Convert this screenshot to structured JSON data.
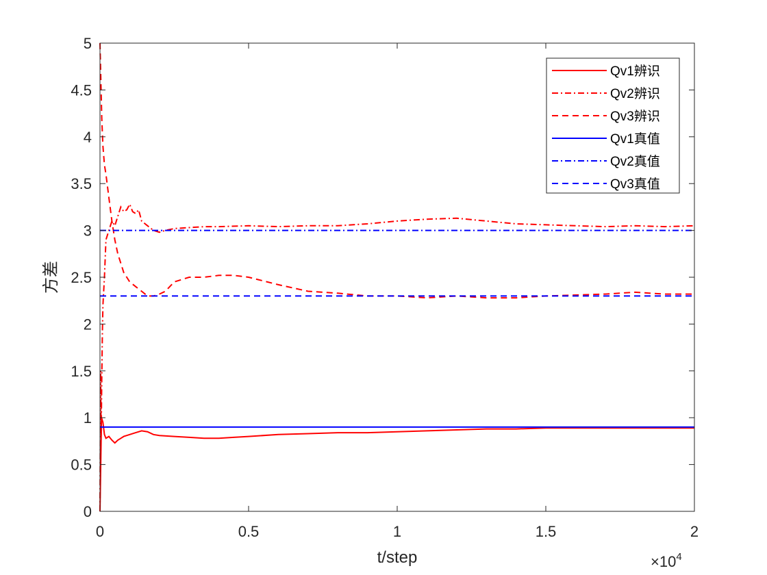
{
  "chart_data": {
    "type": "line",
    "xlabel": "t/step",
    "ylabel": "方差",
    "xlim": [
      0,
      20000
    ],
    "ylim": [
      0,
      5
    ],
    "x_exponent_label": "×10",
    "x_exponent_power": "4",
    "xticks": [
      {
        "value": 0,
        "label": "0"
      },
      {
        "value": 5000,
        "label": "0.5"
      },
      {
        "value": 10000,
        "label": "1"
      },
      {
        "value": 15000,
        "label": "1.5"
      },
      {
        "value": 20000,
        "label": "2"
      }
    ],
    "yticks": [
      {
        "value": 0,
        "label": "0"
      },
      {
        "value": 0.5,
        "label": "0.5"
      },
      {
        "value": 1,
        "label": "1"
      },
      {
        "value": 1.5,
        "label": "1.5"
      },
      {
        "value": 2,
        "label": "2"
      },
      {
        "value": 2.5,
        "label": "2.5"
      },
      {
        "value": 3,
        "label": "3"
      },
      {
        "value": 3.5,
        "label": "3.5"
      },
      {
        "value": 4,
        "label": "4"
      },
      {
        "value": 4.5,
        "label": "4.5"
      },
      {
        "value": 5,
        "label": "5"
      }
    ],
    "grid": false,
    "legend_position": "top-right",
    "series": [
      {
        "name": "Qv1辨识",
        "color": "#ff0000",
        "style": "solid",
        "x": [
          0,
          20,
          50,
          100,
          150,
          200,
          300,
          400,
          500,
          600,
          700,
          800,
          1000,
          1200,
          1400,
          1600,
          1800,
          2000,
          2500,
          3000,
          3500,
          4000,
          4500,
          5000,
          6000,
          7000,
          8000,
          9000,
          10000,
          11000,
          12000,
          13000,
          14000,
          15000,
          16000,
          17000,
          18000,
          19000,
          20000
        ],
        "y": [
          0,
          0.4,
          1.0,
          0.95,
          0.82,
          0.78,
          0.8,
          0.76,
          0.73,
          0.76,
          0.78,
          0.8,
          0.82,
          0.84,
          0.86,
          0.85,
          0.82,
          0.81,
          0.8,
          0.79,
          0.78,
          0.78,
          0.79,
          0.8,
          0.82,
          0.83,
          0.84,
          0.84,
          0.85,
          0.86,
          0.87,
          0.88,
          0.88,
          0.89,
          0.89,
          0.89,
          0.89,
          0.89,
          0.89
        ]
      },
      {
        "name": "Qv2辨识",
        "color": "#ff0000",
        "style": "dashdot",
        "x": [
          0,
          20,
          40,
          60,
          80,
          100,
          150,
          200,
          300,
          400,
          500,
          600,
          700,
          800,
          900,
          1000,
          1100,
          1200,
          1300,
          1400,
          1600,
          1800,
          2000,
          2200,
          2500,
          3000,
          3500,
          4000,
          5000,
          6000,
          7000,
          8000,
          9000,
          10000,
          11000,
          12000,
          13000,
          14000,
          15000,
          16000,
          17000,
          18000,
          19000,
          20000
        ],
        "y": [
          0,
          1.5,
          0.8,
          1.4,
          1.9,
          2.2,
          2.5,
          2.9,
          3.0,
          3.1,
          3.05,
          3.15,
          3.25,
          3.2,
          3.22,
          3.28,
          3.2,
          3.18,
          3.22,
          3.1,
          3.05,
          3.0,
          2.98,
          3.0,
          3.02,
          3.03,
          3.04,
          3.04,
          3.05,
          3.04,
          3.05,
          3.05,
          3.07,
          3.1,
          3.12,
          3.13,
          3.1,
          3.07,
          3.06,
          3.05,
          3.04,
          3.05,
          3.04,
          3.05
        ]
      },
      {
        "name": "Qv3辨识",
        "color": "#ff0000",
        "style": "dashed",
        "x": [
          0,
          30,
          60,
          100,
          150,
          200,
          300,
          400,
          500,
          600,
          700,
          800,
          900,
          1000,
          1200,
          1400,
          1600,
          1800,
          2000,
          2200,
          2500,
          3000,
          3500,
          4000,
          4500,
          5000,
          6000,
          7000,
          8000,
          9000,
          10000,
          11000,
          12000,
          13000,
          14000,
          15000,
          16000,
          17000,
          18000,
          19000,
          20000
        ],
        "y": [
          5.0,
          4.6,
          4.2,
          3.9,
          3.7,
          3.6,
          3.35,
          3.1,
          2.9,
          2.75,
          2.65,
          2.55,
          2.5,
          2.45,
          2.4,
          2.35,
          2.3,
          2.3,
          2.32,
          2.35,
          2.45,
          2.5,
          2.5,
          2.52,
          2.52,
          2.5,
          2.42,
          2.35,
          2.33,
          2.3,
          2.3,
          2.28,
          2.3,
          2.28,
          2.28,
          2.3,
          2.31,
          2.32,
          2.34,
          2.32,
          2.32
        ]
      },
      {
        "name": "Qv1真值",
        "color": "#0000ff",
        "style": "solid",
        "x": [
          0,
          20000
        ],
        "y": [
          0.9,
          0.9
        ]
      },
      {
        "name": "Qv2真值",
        "color": "#0000ff",
        "style": "dashdot",
        "x": [
          0,
          20000
        ],
        "y": [
          3.0,
          3.0
        ]
      },
      {
        "name": "Qv3真值",
        "color": "#0000ff",
        "style": "dashed",
        "x": [
          0,
          20000
        ],
        "y": [
          2.3,
          2.3
        ]
      }
    ]
  }
}
